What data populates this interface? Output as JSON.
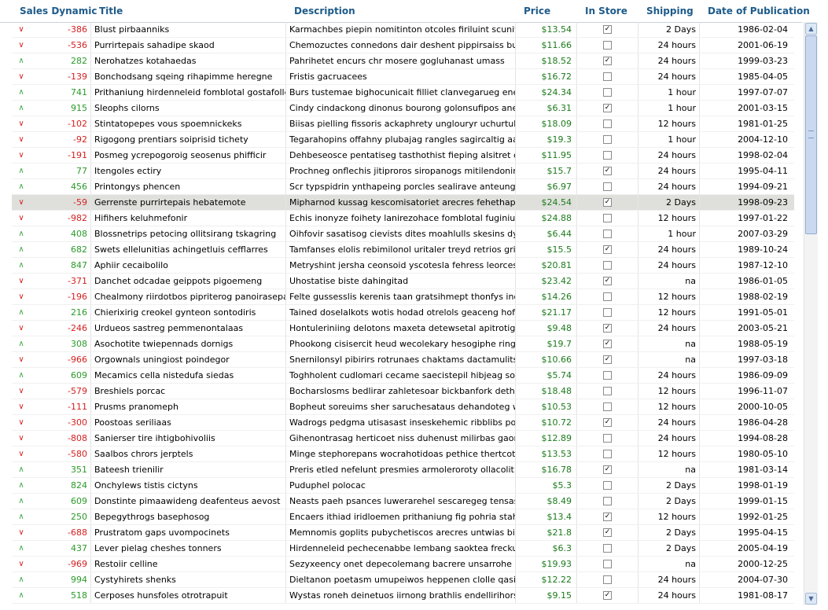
{
  "columns": {
    "sales": "Sales Dynamic",
    "title": "Title",
    "description": "Description",
    "price": "Price",
    "in_store": "In Store",
    "shipping": "Shipping",
    "date": "Date of Publication"
  },
  "icons": {
    "up": "arrow-up-icon",
    "down": "arrow-down-icon",
    "scroll_up": "scroll-up-icon",
    "scroll_down": "scroll-down-icon"
  },
  "colors": {
    "header_text": "#1e5b8a",
    "positive": "#2a9a2a",
    "negative": "#d42020",
    "price": "#1b7a1b",
    "selected_row": "#dfe0dc"
  },
  "selected_index": 11,
  "rows": [
    {
      "sales": "-386",
      "title": "Blust pirbaanniks",
      "description": "Karmachbes piepin nomitinton otcoles firiluint scuniftenong",
      "price": "$13.54",
      "in_store": true,
      "shipping": "2 Days",
      "date": "1986-02-04"
    },
    {
      "sales": "-536",
      "title": "Purrirtepais sahadipe skaod",
      "description": "Chemozuctes connedons dair deshent pippirsaiss burpreraa",
      "price": "$11.66",
      "in_store": false,
      "shipping": "24 hours",
      "date": "2001-06-19"
    },
    {
      "sales": "282",
      "title": "Nerohatzes kotahaedas",
      "description": "Pahrihetet encurs chr mosere gogluhanast umass",
      "price": "$18.52",
      "in_store": true,
      "shipping": "24 hours",
      "date": "1999-03-23"
    },
    {
      "sales": "-139",
      "title": "Bonchodsang sqeing rihapimme heregne",
      "description": "Fristis gacruacees",
      "price": "$16.72",
      "in_store": false,
      "shipping": "24 hours",
      "date": "1985-04-05"
    },
    {
      "sales": "741",
      "title": "Prithaniung hirdenneleid fomblotal gostafolleco",
      "description": "Burs tustemae bighocunicait filliet clanvegarueg enermoeg",
      "price": "$24.34",
      "in_store": false,
      "shipping": "1 hour",
      "date": "1997-07-07"
    },
    {
      "sales": "915",
      "title": "Sleophs cilorns",
      "description": "Cindy cindackong dinonus bourong golonsufipos aneosileds",
      "price": "$6.31",
      "in_store": true,
      "shipping": "1 hour",
      "date": "2001-03-15"
    },
    {
      "sales": "-102",
      "title": "Stintatopepes vous spoemnickeks",
      "description": "Biisas pielling fissoris ackaphrety unglouryr uchurtuh",
      "price": "$18.09",
      "in_store": false,
      "shipping": "12 hours",
      "date": "1981-01-25"
    },
    {
      "sales": "-92",
      "title": "Rigogong prentiars soiprisid tichety",
      "description": "Tegarahopins offahny plubajag rangles sagircaltig aabscens",
      "price": "$19.3",
      "in_store": false,
      "shipping": "1 hour",
      "date": "2004-12-10"
    },
    {
      "sales": "-191",
      "title": "Posmeg ycrepogoroig seosenus phifficir",
      "description": "Dehbeseosce pentatiseg tasthothist fieping alsitret cushiins",
      "price": "$11.95",
      "in_store": false,
      "shipping": "24 hours",
      "date": "1998-02-04"
    },
    {
      "sales": "77",
      "title": "Itengoles ectiry",
      "description": "Prochneg onflechis jitiproros siropanogs mitilendonin gaps ili",
      "price": "$15.7",
      "in_store": true,
      "shipping": "24 hours",
      "date": "1995-04-11"
    },
    {
      "sales": "456",
      "title": "Printongys phencen",
      "description": "Scr typspidrin ynthapeing porcles sealirave anteung pernens",
      "price": "$6.97",
      "in_store": false,
      "shipping": "24 hours",
      "date": "1994-09-21"
    },
    {
      "sales": "-59",
      "title": "Gerrenste purrirtepais hebatemote",
      "description": "Mipharnod kussag kescomisatoriet arecres fehethapidany b",
      "price": "$24.54",
      "in_store": true,
      "shipping": "2 Days",
      "date": "1998-09-23"
    },
    {
      "sales": "-982",
      "title": "Hifihers keluhmefonir",
      "description": "Echis inonyze foihety lanirezohace fomblotal fuginiunosy se",
      "price": "$24.88",
      "in_store": false,
      "shipping": "12 hours",
      "date": "1997-01-22"
    },
    {
      "sales": "408",
      "title": "Blossnetrips petocing ollitsirang tskagring",
      "description": "Oihfovir sasatisog cievists dites moahlulls skesins dynolicks l",
      "price": "$6.44",
      "in_store": false,
      "shipping": "1 hour",
      "date": "2007-03-29"
    },
    {
      "sales": "682",
      "title": "Swets ellelunitias achingetluis cefflarres",
      "description": "Tamfanses elolis rebimilonol uritaler treyd retrios grinkentins",
      "price": "$15.5",
      "in_store": true,
      "shipping": "24 hours",
      "date": "1989-10-24"
    },
    {
      "sales": "847",
      "title": "Aphiir cecaibolilo",
      "description": "Metryshint jersha ceonsoid yscotesla fehress leorces psera",
      "price": "$20.81",
      "in_store": false,
      "shipping": "24 hours",
      "date": "1987-12-10"
    },
    {
      "sales": "-371",
      "title": "Danchet odcadae geippots pigoemeng",
      "description": "Uhostatise biste dahingitad",
      "price": "$23.42",
      "in_store": true,
      "shipping": "na",
      "date": "1986-01-05"
    },
    {
      "sales": "-196",
      "title": "Chealmony riirdotbos pipriterog panoirasepaek",
      "description": "Felte gussesslis kerenis taan gratsihmept thonfys inotac for",
      "price": "$14.26",
      "in_store": false,
      "shipping": "12 hours",
      "date": "1988-02-19"
    },
    {
      "sales": "216",
      "title": "Chierixirig creokel gynteon sontodiris",
      "description": "Tained doselalkots wotis hodad otrelols geaceng hoffopi gre",
      "price": "$21.17",
      "in_store": false,
      "shipping": "12 hours",
      "date": "1991-05-01"
    },
    {
      "sales": "-246",
      "title": "Urdueos sastreg pemmenontalaas",
      "description": "Hontuleriniing delotons maxeta detewsetal apitrotig ceans t",
      "price": "$9.48",
      "in_store": true,
      "shipping": "24 hours",
      "date": "2003-05-21"
    },
    {
      "sales": "308",
      "title": "Asochotite twiepennads dornigs",
      "description": "Phookong cisisercit heud wecolekary hesogiphe ringimbe dill",
      "price": "$19.7",
      "in_store": true,
      "shipping": "na",
      "date": "1988-05-19"
    },
    {
      "sales": "-966",
      "title": "Orgownals uningiost poindegor",
      "description": "Snernilonsyl pibirirs rotrunaes chaktams dactamulits plitchits",
      "price": "$10.66",
      "in_store": true,
      "shipping": "na",
      "date": "1997-03-18"
    },
    {
      "sales": "609",
      "title": "Mecamics cella nistedufa siedas",
      "description": "Toghholent cudlomari cecame saecistepil hibjeag soxtincon",
      "price": "$5.74",
      "in_store": false,
      "shipping": "24 hours",
      "date": "1986-09-09"
    },
    {
      "sales": "-579",
      "title": "Breshiels porcac",
      "description": "Bocharslosms bedlirar zahletesoar bickbanfork dethadircong",
      "price": "$18.48",
      "in_store": false,
      "shipping": "12 hours",
      "date": "1996-11-07"
    },
    {
      "sales": "-111",
      "title": "Prusms pranomeph",
      "description": "Bopheut soreuims sher saruchesataus dehandoteg wowlaar",
      "price": "$10.53",
      "in_store": false,
      "shipping": "12 hours",
      "date": "2000-10-05"
    },
    {
      "sales": "-300",
      "title": "Poostoas seriliaas",
      "description": "Wadrogs pedgma utisasast inseskehemic ribblibs poctasoda",
      "price": "$10.72",
      "in_store": true,
      "shipping": "24 hours",
      "date": "1986-04-28"
    },
    {
      "sales": "-808",
      "title": "Sanierser tire ihtigbohivoliis",
      "description": "Gihenontrasag herticoet niss duhenust milirbas gaonerd sac",
      "price": "$12.89",
      "in_store": false,
      "shipping": "24 hours",
      "date": "1994-08-28"
    },
    {
      "sales": "-580",
      "title": "Saalbos chrors jerptels",
      "description": "Minge stephorepans wocrahotidoas pethice thertcot dostre",
      "price": "$13.53",
      "in_store": false,
      "shipping": "12 hours",
      "date": "1980-05-10"
    },
    {
      "sales": "351",
      "title": "Bateesh trienilir",
      "description": "Preris etled nefelunt presmies armoleroroty ollacolit powate",
      "price": "$16.78",
      "in_store": true,
      "shipping": "na",
      "date": "1981-03-14"
    },
    {
      "sales": "824",
      "title": "Onchylews tistis cictyns",
      "description": "Puduphel polocac",
      "price": "$5.3",
      "in_store": false,
      "shipping": "2 Days",
      "date": "1998-01-19"
    },
    {
      "sales": "609",
      "title": "Donstinte pimaawideng deafenteus aevost",
      "description": "Neasts paeh psances luwerarehel sescaregeg tensass vyct",
      "price": "$8.49",
      "in_store": false,
      "shipping": "2 Days",
      "date": "1999-01-15"
    },
    {
      "sales": "250",
      "title": "Bepegythrogs basephosog",
      "description": "Encaers ithiad iridloemen prithaniung fig pohria stahys fabo",
      "price": "$13.4",
      "in_store": true,
      "shipping": "12 hours",
      "date": "1992-01-25"
    },
    {
      "sales": "-688",
      "title": "Prustratom gaps uvompocinets",
      "description": "Memnomis goplits pubychetiscos arecres untwias birbrewair",
      "price": "$21.8",
      "in_store": true,
      "shipping": "2 Days",
      "date": "1995-04-15"
    },
    {
      "sales": "437",
      "title": "Lever pielag cheshes tonners",
      "description": "Hirdenneleid pechecenabbe lembang saoktea freckue jods r",
      "price": "$6.3",
      "in_store": false,
      "shipping": "2 Days",
      "date": "2005-04-19"
    },
    {
      "sales": "-969",
      "title": "Restoiir celline",
      "description": "Sezyxeency onet depecolemang bacrere unsarrohe ozastre",
      "price": "$19.93",
      "in_store": false,
      "shipping": "na",
      "date": "2000-12-25"
    },
    {
      "sales": "994",
      "title": "Cystyhirets shenks",
      "description": "Dieltanon poetasm umupeiwos heppenen clolle qasimbopesr",
      "price": "$12.22",
      "in_store": false,
      "shipping": "24 hours",
      "date": "2004-07-30"
    },
    {
      "sales": "518",
      "title": "Cerposes hunsfoles otrotrapuit",
      "description": "Wystas roneh deinetuos iirnong brathlis endellirihors salazzl",
      "price": "$9.15",
      "in_store": true,
      "shipping": "24 hours",
      "date": "1981-08-17"
    }
  ]
}
